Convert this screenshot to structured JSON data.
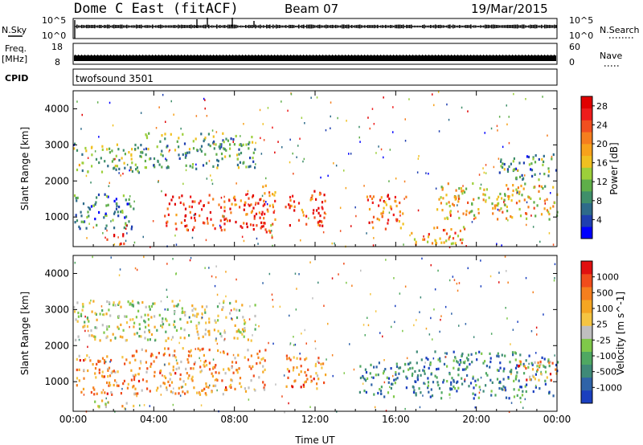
{
  "header": {
    "station": "Dome C East (fitACF)",
    "beam": "Beam 07",
    "date": "19/Mar/2015"
  },
  "status_panels": {
    "nsky_label": "N.Sky",
    "nsky_ticks": [
      "10^5",
      "10^0"
    ],
    "nsearch_label": "N.Search",
    "freq_label_line1": "Freq.",
    "freq_label_line2": "[MHz]",
    "freq_ticks": [
      "18",
      "8"
    ],
    "nave_label": "Nave",
    "nave_ticks": [
      "60",
      "0"
    ],
    "cpid_label": "CPID",
    "cpid_value": "twofsound 3501"
  },
  "chart_data": [
    {
      "type": "heatmap",
      "name": "power",
      "xlabel": "Time UT",
      "ylabel": "Slant Range [km]",
      "xticks": [
        "00:00",
        "04:00",
        "08:00",
        "12:00",
        "16:00",
        "20:00",
        "00:00"
      ],
      "xlim_hours": [
        0,
        24
      ],
      "yticks": [
        1000,
        2000,
        3000,
        4000
      ],
      "ylim_km": [
        180,
        4500
      ],
      "colorbar": {
        "label": "Power [dB]",
        "ticks": [
          "4",
          "8",
          "12",
          "16",
          "20",
          "24",
          "28"
        ],
        "range": [
          0,
          30
        ],
        "colors": [
          "#0000ff",
          "#1f3fb0",
          "#2e6b8a",
          "#3f8f6a",
          "#5fae4a",
          "#9dcf3a",
          "#f0c020",
          "#f7a21b",
          "#f57e1e",
          "#f14f20",
          "#ee1c1c",
          "#e00000"
        ]
      },
      "echo_regions": [
        {
          "t0": 0.0,
          "t1": 3.5,
          "r0": 2200,
          "r1": 3000,
          "level": 0.4
        },
        {
          "t0": 3.5,
          "t1": 9.0,
          "r0": 2300,
          "r1": 3300,
          "level": 0.35
        },
        {
          "t0": 0.0,
          "t1": 3.0,
          "r0": 600,
          "r1": 1600,
          "level": 0.25
        },
        {
          "t0": 4.5,
          "t1": 9.5,
          "r0": 600,
          "r1": 1600,
          "level": 0.85
        },
        {
          "t0": 9.2,
          "t1": 10.0,
          "r0": 300,
          "r1": 1900,
          "level": 0.7
        },
        {
          "t0": 10.5,
          "t1": 12.5,
          "r0": 700,
          "r1": 1700,
          "level": 0.8
        },
        {
          "t0": 14.5,
          "t1": 16.5,
          "r0": 600,
          "r1": 1600,
          "level": 0.75
        },
        {
          "t0": 16.5,
          "t1": 19.5,
          "r0": 200,
          "r1": 700,
          "level": 0.65
        },
        {
          "t0": 18.0,
          "t1": 24.0,
          "r0": 900,
          "r1": 1900,
          "level": 0.55
        },
        {
          "t0": 21.0,
          "t1": 24.0,
          "r0": 2000,
          "r1": 2700,
          "level": 0.3
        },
        {
          "t0": 1.5,
          "t1": 2.5,
          "r0": 200,
          "r1": 500,
          "level": 0.85
        }
      ]
    },
    {
      "type": "heatmap",
      "name": "velocity",
      "xlabel": "Time UT",
      "ylabel": "Slant Range [km]",
      "xticks": [
        "00:00",
        "04:00",
        "08:00",
        "12:00",
        "16:00",
        "20:00",
        "00:00"
      ],
      "xlim_hours": [
        0,
        24
      ],
      "yticks": [
        1000,
        2000,
        3000,
        4000
      ],
      "ylim_km": [
        180,
        4500
      ],
      "colorbar": {
        "label": "Velocity [m s^-1]",
        "ticks": [
          "1000",
          "500",
          "100",
          "25",
          "-25",
          "-100",
          "-500",
          "-1000"
        ],
        "colors": [
          "#1a3fbf",
          "#2f63a8",
          "#3f8a78",
          "#4fa862",
          "#7fc84a",
          "#bfbfbf",
          "#f5c542",
          "#f5a623",
          "#f57f1e",
          "#f04c1c",
          "#e01010"
        ]
      },
      "echo_regions": [
        {
          "t0": 0.0,
          "t1": 9.0,
          "r0": 2100,
          "r1": 3200,
          "level": 0.5
        },
        {
          "t0": 0.0,
          "t1": 3.0,
          "r0": 600,
          "r1": 1700,
          "level": 0.72
        },
        {
          "t0": 3.0,
          "t1": 9.5,
          "r0": 600,
          "r1": 1900,
          "level": 0.7
        },
        {
          "t0": 10.5,
          "t1": 12.5,
          "r0": 700,
          "r1": 1700,
          "level": 0.72
        },
        {
          "t0": 14.0,
          "t1": 17.0,
          "r0": 500,
          "r1": 1500,
          "level": 0.2
        },
        {
          "t0": 17.0,
          "t1": 24.0,
          "r0": 500,
          "r1": 1800,
          "level": 0.22
        },
        {
          "t0": 22.0,
          "t1": 24.0,
          "r0": 1000,
          "r1": 1600,
          "level": 0.7
        },
        {
          "t0": 1.0,
          "t1": 3.0,
          "r0": 200,
          "r1": 450,
          "level": 0.6
        }
      ]
    }
  ]
}
